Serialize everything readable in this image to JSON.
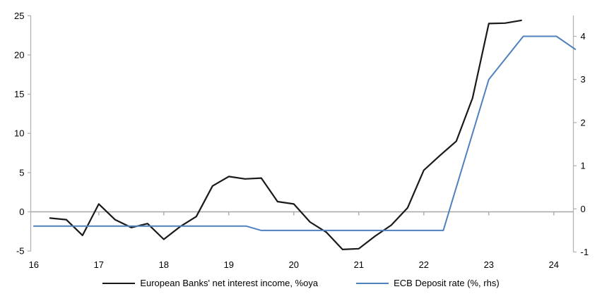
{
  "chart_data": {
    "type": "line",
    "title": "",
    "grid": "zero-line-only",
    "legend_position": "bottom",
    "x_axis": {
      "ticks": [
        16,
        17,
        18,
        19,
        20,
        21,
        22,
        23,
        24
      ],
      "range": [
        16,
        24.35
      ]
    },
    "left_axis": {
      "ticks": [
        25,
        20,
        15,
        10,
        5,
        0,
        -5
      ],
      "range": [
        -5,
        25
      ]
    },
    "right_axis": {
      "ticks": [
        4,
        3,
        2,
        1,
        0,
        -1
      ],
      "range": [
        -1,
        4.5
      ]
    },
    "series": [
      {
        "name": "European Banks' net interest income, %oya",
        "axis": "left",
        "color": "#1a1a1a",
        "width": 2.2,
        "points": [
          [
            16.25,
            -0.8
          ],
          [
            16.5,
            -1.0
          ],
          [
            16.75,
            -3.0
          ],
          [
            17.0,
            1.0
          ],
          [
            17.25,
            -1.0
          ],
          [
            17.5,
            -2.0
          ],
          [
            17.75,
            -1.5
          ],
          [
            18.0,
            -3.5
          ],
          [
            18.25,
            -1.9
          ],
          [
            18.5,
            -0.6
          ],
          [
            18.75,
            3.3
          ],
          [
            19.0,
            4.5
          ],
          [
            19.25,
            4.2
          ],
          [
            19.5,
            4.3
          ],
          [
            19.75,
            1.3
          ],
          [
            20.0,
            1.0
          ],
          [
            20.25,
            -1.3
          ],
          [
            20.5,
            -2.6
          ],
          [
            20.75,
            -4.8
          ],
          [
            21.0,
            -4.7
          ],
          [
            21.25,
            -3.1
          ],
          [
            21.5,
            -1.7
          ],
          [
            21.75,
            0.5
          ],
          [
            22.0,
            5.3
          ],
          [
            22.25,
            7.2
          ],
          [
            22.5,
            9.0
          ],
          [
            22.75,
            14.5
          ],
          [
            23.0,
            24.0
          ],
          [
            23.25,
            24.05
          ],
          [
            23.5,
            24.4
          ]
        ]
      },
      {
        "name": "ECB Deposit rate (%, rhs)",
        "axis": "right",
        "color": "#4f81bd",
        "width": 2,
        "points": [
          [
            16.0,
            -0.4
          ],
          [
            19.27,
            -0.4
          ],
          [
            19.5,
            -0.5
          ],
          [
            22.3,
            -0.5
          ],
          [
            23.0,
            3.0
          ],
          [
            23.53,
            4.0
          ],
          [
            24.04,
            4.0
          ],
          [
            24.33,
            3.7
          ]
        ]
      }
    ]
  },
  "colors": {
    "axis": "#b3b3b3",
    "zero_line": "#a6a6a6",
    "tick_label": "#000000",
    "background": "#ffffff"
  }
}
